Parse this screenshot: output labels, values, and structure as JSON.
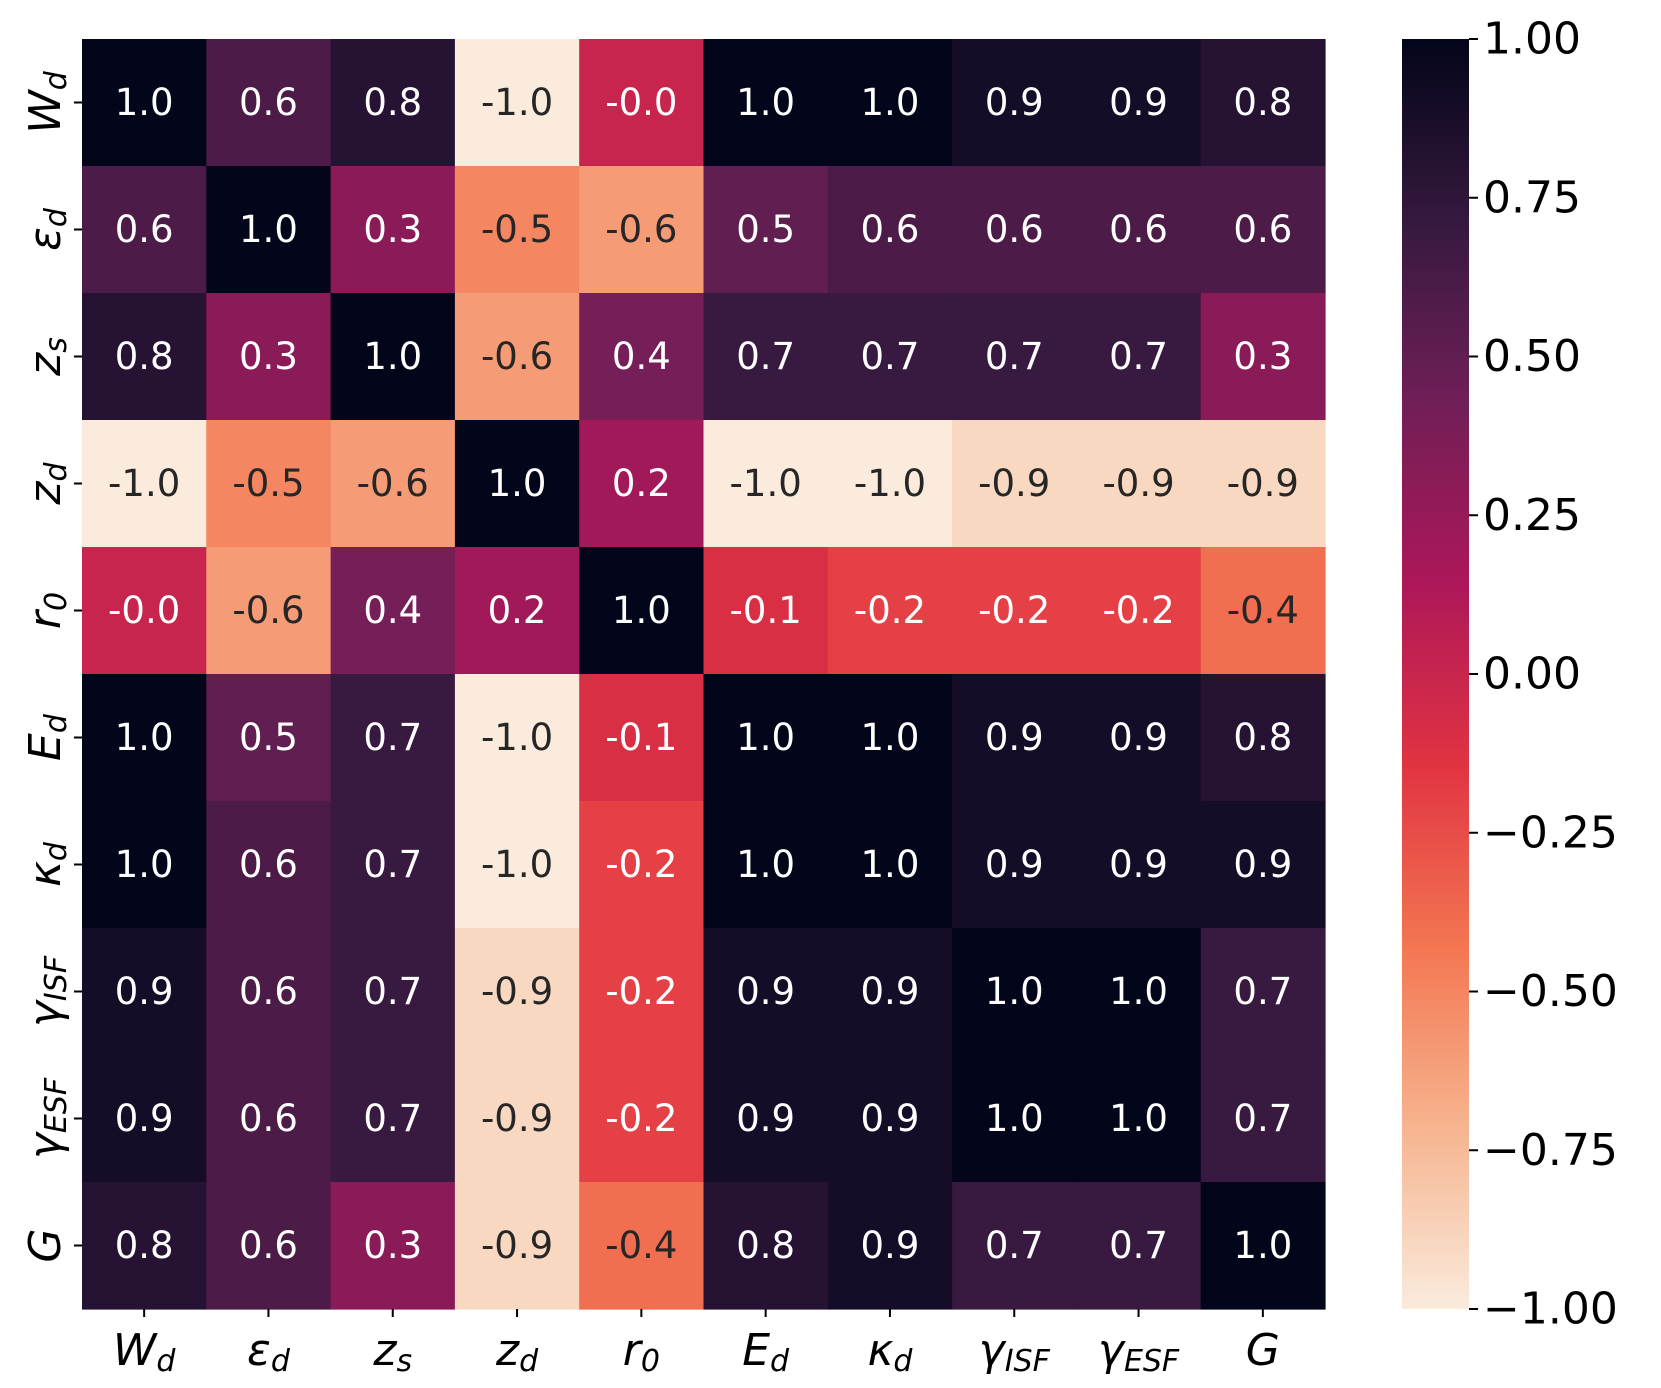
{
  "chart_data": {
    "type": "heatmap",
    "title": "",
    "xlabel": "",
    "ylabel": "",
    "labels": [
      {
        "main": "W",
        "sub": "d"
      },
      {
        "main": "ε",
        "sub": "d"
      },
      {
        "main": "z",
        "sub": "s"
      },
      {
        "main": "z",
        "sub": "d"
      },
      {
        "main": "r",
        "sub": "0"
      },
      {
        "main": "E",
        "sub": "d"
      },
      {
        "main": "κ",
        "sub": "d"
      },
      {
        "main": "γ",
        "sub": "ISF"
      },
      {
        "main": "γ",
        "sub": "ESF"
      },
      {
        "main": "G",
        "sub": ""
      }
    ],
    "values": [
      [
        1.0,
        0.6,
        0.8,
        -1.0,
        -0.0,
        1.0,
        1.0,
        0.9,
        0.9,
        0.8
      ],
      [
        0.6,
        1.0,
        0.3,
        -0.5,
        -0.6,
        0.5,
        0.6,
        0.6,
        0.6,
        0.6
      ],
      [
        0.8,
        0.3,
        1.0,
        -0.6,
        0.4,
        0.7,
        0.7,
        0.7,
        0.7,
        0.3
      ],
      [
        -1.0,
        -0.5,
        -0.6,
        1.0,
        0.2,
        -1.0,
        -1.0,
        -0.9,
        -0.9,
        -0.9
      ],
      [
        -0.0,
        -0.6,
        0.4,
        0.2,
        1.0,
        -0.1,
        -0.2,
        -0.2,
        -0.2,
        -0.4
      ],
      [
        1.0,
        0.5,
        0.7,
        -1.0,
        -0.1,
        1.0,
        1.0,
        0.9,
        0.9,
        0.8
      ],
      [
        1.0,
        0.6,
        0.7,
        -1.0,
        -0.2,
        1.0,
        1.0,
        0.9,
        0.9,
        0.9
      ],
      [
        0.9,
        0.6,
        0.7,
        -0.9,
        -0.2,
        0.9,
        0.9,
        1.0,
        1.0,
        0.7
      ],
      [
        0.9,
        0.6,
        0.7,
        -0.9,
        -0.2,
        0.9,
        0.9,
        1.0,
        1.0,
        0.7
      ],
      [
        0.8,
        0.6,
        0.3,
        -0.9,
        -0.4,
        0.8,
        0.9,
        0.7,
        0.7,
        1.0
      ]
    ],
    "annotations": [
      [
        "1.0",
        "0.6",
        "0.8",
        "-1.0",
        "-0.0",
        "1.0",
        "1.0",
        "0.9",
        "0.9",
        "0.8"
      ],
      [
        "0.6",
        "1.0",
        "0.3",
        "-0.5",
        "-0.6",
        "0.5",
        "0.6",
        "0.6",
        "0.6",
        "0.6"
      ],
      [
        "0.8",
        "0.3",
        "1.0",
        "-0.6",
        "0.4",
        "0.7",
        "0.7",
        "0.7",
        "0.7",
        "0.3"
      ],
      [
        "-1.0",
        "-0.5",
        "-0.6",
        "1.0",
        "0.2",
        "-1.0",
        "-1.0",
        "-0.9",
        "-0.9",
        "-0.9"
      ],
      [
        "-0.0",
        "-0.6",
        "0.4",
        "0.2",
        "1.0",
        "-0.1",
        "-0.2",
        "-0.2",
        "-0.2",
        "-0.4"
      ],
      [
        "1.0",
        "0.5",
        "0.7",
        "-1.0",
        "-0.1",
        "1.0",
        "1.0",
        "0.9",
        "0.9",
        "0.8"
      ],
      [
        "1.0",
        "0.6",
        "0.7",
        "-1.0",
        "-0.2",
        "1.0",
        "1.0",
        "0.9",
        "0.9",
        "0.9"
      ],
      [
        "0.9",
        "0.6",
        "0.7",
        "-0.9",
        "-0.2",
        "0.9",
        "0.9",
        "1.0",
        "1.0",
        "0.7"
      ],
      [
        "0.9",
        "0.6",
        "0.7",
        "-0.9",
        "-0.2",
        "0.9",
        "0.9",
        "1.0",
        "1.0",
        "0.7"
      ],
      [
        "0.8",
        "0.6",
        "0.3",
        "-0.9",
        "-0.4",
        "0.8",
        "0.9",
        "0.7",
        "0.7",
        "1.0"
      ]
    ],
    "colorbar": {
      "vmin": -1.0,
      "vmax": 1.0,
      "ticks": [
        1.0,
        0.75,
        0.5,
        0.25,
        0.0,
        -0.25,
        -0.5,
        -0.75,
        -1.0
      ],
      "tick_labels": [
        "1.00",
        "0.75",
        "0.50",
        "0.25",
        "0.00",
        "−0.25",
        "−0.50",
        "−0.75",
        "−1.00"
      ],
      "colormap": "rocket_r",
      "stops": [
        "#faebdd",
        "#f6b48f",
        "#f37651",
        "#e13342",
        "#ad1759",
        "#701f57",
        "#35193e",
        "#03051a"
      ]
    },
    "text_colors": {
      "on_dark": "#ffffff",
      "on_light": "#262626"
    }
  }
}
